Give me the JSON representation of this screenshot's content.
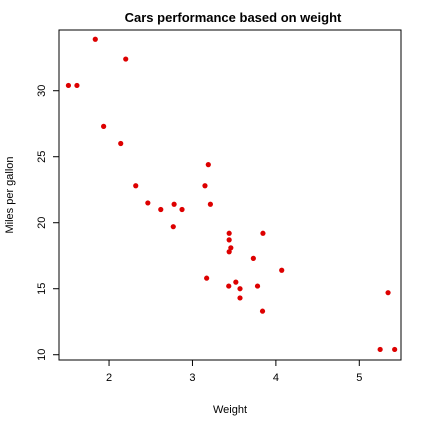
{
  "chart_data": {
    "type": "scatter",
    "title": "Cars performance based on weight",
    "xlabel": "Weight",
    "ylabel": "Miles per gallon",
    "xlim": [
      1.4,
      5.5
    ],
    "ylim": [
      9.6,
      34.6
    ],
    "xticks": [
      2,
      3,
      4,
      5
    ],
    "yticks": [
      10,
      15,
      20,
      25,
      30
    ],
    "grid": false,
    "legend": "none",
    "point_color": "#dd0000",
    "x": [
      1.513,
      1.615,
      1.835,
      1.935,
      2.14,
      2.2,
      2.32,
      2.465,
      2.62,
      2.77,
      2.78,
      2.875,
      3.15,
      3.17,
      3.19,
      3.215,
      3.435,
      3.44,
      3.44,
      3.44,
      3.46,
      3.52,
      3.57,
      3.57,
      3.73,
      3.78,
      3.84,
      3.845,
      4.07,
      5.25,
      5.345,
      5.424
    ],
    "y": [
      30.4,
      30.4,
      33.9,
      27.3,
      26.0,
      32.4,
      22.8,
      21.5,
      21.0,
      19.7,
      21.4,
      21.0,
      22.8,
      15.8,
      24.4,
      21.4,
      15.2,
      17.8,
      18.7,
      19.2,
      18.1,
      15.5,
      14.3,
      15.0,
      17.3,
      15.2,
      13.3,
      19.2,
      16.4,
      10.4,
      14.7,
      10.4
    ]
  }
}
